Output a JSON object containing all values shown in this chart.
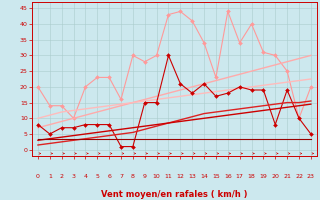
{
  "xlabel": "Vent moyen/en rafales ( km/h )",
  "bg_color": "#cce8ee",
  "grid_color": "#aacccc",
  "x": [
    0,
    1,
    2,
    3,
    4,
    5,
    6,
    7,
    8,
    9,
    10,
    11,
    12,
    13,
    14,
    15,
    16,
    17,
    18,
    19,
    20,
    21,
    22,
    23
  ],
  "series": [
    {
      "label": "rafales_light",
      "color": "#ff9999",
      "lw": 0.8,
      "marker": "D",
      "ms": 2.0,
      "y": [
        20,
        14,
        14,
        10,
        20,
        23,
        23,
        16,
        30,
        28,
        30,
        43,
        44,
        41,
        34,
        23,
        44,
        34,
        40,
        31,
        30,
        25,
        10,
        20
      ]
    },
    {
      "label": "reg1_light",
      "color": "#ffaaaa",
      "lw": 1.0,
      "marker": null,
      "y": [
        7.0,
        8.0,
        9.0,
        10.0,
        11.0,
        12.0,
        13.0,
        14.0,
        15.0,
        16.0,
        17.0,
        18.0,
        19.0,
        20.0,
        21.0,
        22.0,
        23.0,
        24.0,
        25.0,
        26.0,
        27.0,
        28.0,
        29.0,
        30.0
      ]
    },
    {
      "label": "reg2_light",
      "color": "#ffbbbb",
      "lw": 1.0,
      "marker": null,
      "y": [
        10.0,
        11.0,
        12.0,
        12.5,
        13.0,
        13.5,
        14.0,
        14.5,
        15.0,
        15.5,
        16.0,
        16.5,
        17.0,
        17.5,
        18.0,
        18.5,
        19.0,
        19.5,
        20.0,
        20.5,
        21.0,
        21.5,
        22.0,
        22.5
      ]
    },
    {
      "label": "vent_dark",
      "color": "#cc0000",
      "lw": 0.8,
      "marker": "D",
      "ms": 2.0,
      "y": [
        8,
        5,
        7,
        7,
        8,
        8,
        8,
        1,
        1,
        15,
        15,
        30,
        21,
        18,
        21,
        17,
        18,
        20,
        19,
        19,
        8,
        19,
        10,
        5
      ]
    },
    {
      "label": "reg1_dark",
      "color": "#dd2222",
      "lw": 1.0,
      "marker": null,
      "y": [
        1.5,
        2.0,
        2.5,
        3.0,
        3.5,
        4.0,
        4.5,
        5.0,
        5.5,
        6.5,
        7.5,
        8.5,
        9.5,
        10.5,
        11.5,
        12.0,
        12.5,
        13.0,
        13.5,
        14.0,
        14.5,
        15.0,
        15.0,
        15.5
      ]
    },
    {
      "label": "reg2_dark",
      "color": "#cc0000",
      "lw": 1.0,
      "marker": null,
      "y": [
        3.0,
        3.5,
        4.0,
        4.5,
        5.0,
        5.5,
        6.0,
        6.5,
        7.0,
        7.5,
        8.0,
        8.5,
        9.0,
        9.5,
        10.0,
        10.5,
        11.0,
        11.5,
        12.0,
        12.5,
        13.0,
        13.5,
        14.0,
        14.5
      ]
    },
    {
      "label": "flat_dark",
      "color": "#990000",
      "lw": 0.8,
      "marker": null,
      "y": [
        3.5,
        3.5,
        3.5,
        3.5,
        3.5,
        3.5,
        3.5,
        3.5,
        3.5,
        3.5,
        3.5,
        3.5,
        3.5,
        3.5,
        3.5,
        3.5,
        3.5,
        3.5,
        3.5,
        3.5,
        3.5,
        3.5,
        3.5,
        3.5
      ]
    }
  ],
  "ylim": [
    -2,
    47
  ],
  "xlim": [
    -0.5,
    23.5
  ],
  "yticks": [
    0,
    5,
    10,
    15,
    20,
    25,
    30,
    35,
    40,
    45
  ],
  "xticks": [
    0,
    1,
    2,
    3,
    4,
    5,
    6,
    7,
    8,
    9,
    10,
    11,
    12,
    13,
    14,
    15,
    16,
    17,
    18,
    19,
    20,
    21,
    22,
    23
  ],
  "tick_color": "#cc0000",
  "tick_fontsize": 4.5,
  "xlabel_fontsize": 6.0
}
